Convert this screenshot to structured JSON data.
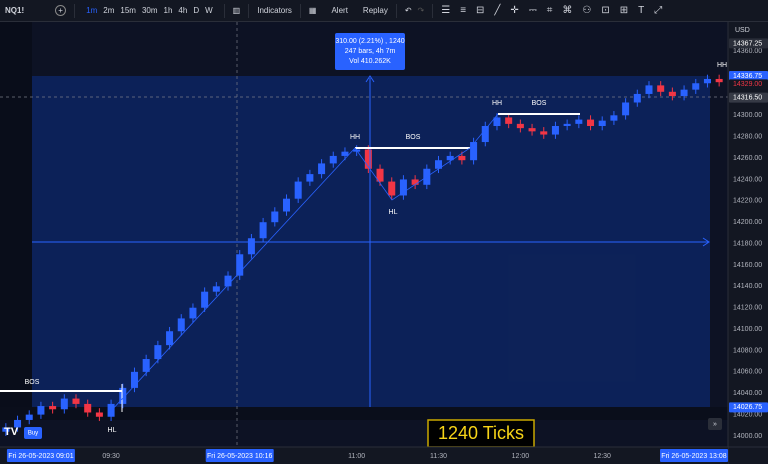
{
  "toolbar": {
    "symbol": "NQ1!",
    "timeframes": [
      "1m",
      "2m",
      "15m",
      "30m",
      "1h",
      "4h",
      "D",
      "W"
    ],
    "indicators": "Indicators",
    "alert": "Alert",
    "replay": "Replay"
  },
  "buy": "Buy",
  "ticks_badge": "1240 Ticks",
  "measure": [
    "310.00 (2.21%) , 1240",
    "247 bars, 4h 7m",
    "Vol 410.262K"
  ],
  "currency": "USD",
  "chart_data": {
    "type": "candlestick",
    "categories": [
      null,
      null,
      null,
      "Fri 26-05-2023 09:01",
      null,
      null,
      null,
      null,
      null,
      "09:30",
      null,
      null,
      null,
      null,
      null,
      null,
      null,
      null,
      null,
      null,
      "Fri 26-05-2023 10:16",
      null,
      null,
      null,
      null,
      null,
      null,
      null,
      null,
      null,
      "11:00",
      null,
      null,
      null,
      null,
      null,
      null,
      "11:30",
      null,
      null,
      null,
      null,
      null,
      null,
      "12:00",
      null,
      null,
      null,
      null,
      null,
      null,
      "12:30",
      null,
      null,
      null,
      null,
      null,
      null,
      null,
      "Fri 26-05-2023 13:08",
      null,
      null
    ],
    "open": [
      14004,
      14008,
      14015,
      14020,
      14028,
      14025,
      14035,
      14030,
      14022,
      14018,
      14030,
      14045,
      14060,
      14072,
      14085,
      14098,
      14110,
      14120,
      14135,
      14140,
      14150,
      14170,
      14185,
      14200,
      14210,
      14222,
      14238,
      14245,
      14255,
      14262,
      14266,
      14268,
      14250,
      14238,
      14225,
      14240,
      14235,
      14250,
      14258,
      14262,
      14258,
      14275,
      14290,
      14298,
      14292,
      14288,
      14285,
      14282,
      14290,
      14292,
      14296,
      14290,
      14295,
      14300,
      14312,
      14320,
      14328,
      14322,
      14318,
      14324,
      14330,
      14334
    ],
    "high": [
      14012,
      14019,
      14024,
      14032,
      14032,
      14039,
      14039,
      14034,
      14026,
      14034,
      14049,
      14064,
      14076,
      14089,
      14102,
      14114,
      14124,
      14139,
      14144,
      14154,
      14174,
      14189,
      14204,
      14214,
      14226,
      14242,
      14249,
      14259,
      14266,
      14270,
      14272,
      14272,
      14254,
      14242,
      14244,
      14244,
      14254,
      14262,
      14266,
      14266,
      14279,
      14294,
      14302,
      14302,
      14296,
      14292,
      14289,
      14294,
      14296,
      14300,
      14300,
      14299,
      14304,
      14316,
      14324,
      14332,
      14332,
      14326,
      14328,
      14334,
      14338,
      14338
    ],
    "low": [
      14000,
      14004,
      14011,
      14016,
      14021,
      14021,
      14026,
      14018,
      14014,
      14014,
      14026,
      14041,
      14056,
      14068,
      14081,
      14094,
      14106,
      14116,
      14131,
      14136,
      14146,
      14166,
      14181,
      14196,
      14206,
      14218,
      14234,
      14241,
      14251,
      14258,
      14262,
      14246,
      14234,
      14221,
      14221,
      14231,
      14231,
      14246,
      14254,
      14254,
      14254,
      14271,
      14286,
      14288,
      14284,
      14281,
      14278,
      14278,
      14286,
      14288,
      14286,
      14286,
      14291,
      14296,
      14308,
      14316,
      14318,
      14314,
      14314,
      14320,
      14326,
      14327
    ],
    "close": [
      14008,
      14015,
      14020,
      14028,
      14025,
      14035,
      14030,
      14022,
      14018,
      14030,
      14045,
      14060,
      14072,
      14085,
      14098,
      14110,
      14120,
      14135,
      14140,
      14150,
      14170,
      14185,
      14200,
      14210,
      14222,
      14238,
      14245,
      14255,
      14262,
      14266,
      14268,
      14250,
      14238,
      14225,
      14240,
      14235,
      14250,
      14258,
      14262,
      14258,
      14275,
      14290,
      14298,
      14292,
      14288,
      14285,
      14282,
      14290,
      14292,
      14296,
      14290,
      14295,
      14300,
      14312,
      14320,
      14328,
      14322,
      14318,
      14324,
      14330,
      14334,
      14331
    ],
    "up_color": "#2962ff",
    "down_color": "#f23645",
    "ylim": [
      13989.7,
      14387.3
    ],
    "yticks": [
      {
        "value": 14000,
        "label": "14000.00"
      },
      {
        "value": 14020,
        "label": "14020.00"
      },
      {
        "value": 14040,
        "label": "14040.00"
      },
      {
        "value": 14060,
        "label": "14060.00"
      },
      {
        "value": 14080,
        "label": "14080.00"
      },
      {
        "value": 14100,
        "label": "14100.00"
      },
      {
        "value": 14120,
        "label": "14120.00"
      },
      {
        "value": 14140,
        "label": "14140.00"
      },
      {
        "value": 14160,
        "label": "14160.00"
      },
      {
        "value": 14180,
        "label": "14180.00"
      },
      {
        "value": 14200,
        "label": "14200.00"
      },
      {
        "value": 14220,
        "label": "14220.00"
      },
      {
        "value": 14240,
        "label": "14240.00"
      },
      {
        "value": 14260,
        "label": "14260.00"
      },
      {
        "value": 14280,
        "label": "14280.00"
      },
      {
        "value": 14300,
        "label": "14300.00"
      },
      {
        "value": 14360,
        "label": "14360.00"
      }
    ],
    "price_labels": [
      14367.25,
      14336.75,
      {
        "value": 14329,
        "label": "14329.00"
      },
      {
        "value": 14316.5,
        "label": "14316.50"
      },
      14026.75
    ],
    "grid": false,
    "annotations": [
      "BOS",
      "HL",
      "HH",
      "BOS",
      "HL",
      "HH",
      "BOS",
      "HH"
    ]
  }
}
